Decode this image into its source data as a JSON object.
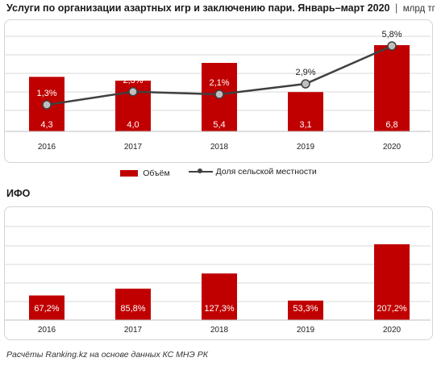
{
  "header": {
    "title": "Услуги по  организации азартных игр и заключению пари. Январь–март 2020",
    "separator": "|",
    "unit": "млрд тг"
  },
  "legend": {
    "bar_label": "Объём",
    "line_label": "Доля сельской местности"
  },
  "section2_title": "ИФО",
  "footer": "Расчёты Ranking.kz на основе данных КС МНЭ РК",
  "colors": {
    "bar": "#c00000",
    "line": "#404040",
    "marker_fill": "#bfbfbf"
  },
  "chart_data": [
    {
      "type": "bar",
      "categories": [
        "2016",
        "2017",
        "2018",
        "2019",
        "2020"
      ],
      "series": [
        {
          "name": "Объём",
          "type": "bar",
          "values": [
            4.3,
            4.0,
            5.4,
            3.1,
            6.8
          ],
          "labels": [
            "4,3",
            "4,0",
            "5,4",
            "3,1",
            "6,8"
          ]
        },
        {
          "name": "Доля сельской местности",
          "type": "line",
          "values": [
            1.3,
            2.3,
            2.1,
            2.9,
            5.8
          ],
          "labels": [
            "1,3%",
            "2,3%",
            "2,1%",
            "2,9%",
            "5,8%"
          ]
        }
      ],
      "grid": true
    },
    {
      "type": "bar",
      "categories": [
        "2016",
        "2017",
        "2018",
        "2019",
        "2020"
      ],
      "values": [
        67.2,
        85.8,
        127.3,
        53.3,
        207.2
      ],
      "labels": [
        "67,2%",
        "85,8%",
        "127,3%",
        "53,3%",
        "207,2%"
      ],
      "grid": true
    }
  ]
}
